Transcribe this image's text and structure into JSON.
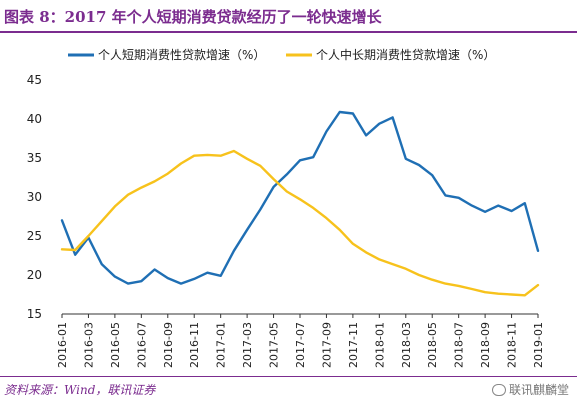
{
  "title": "图表 8：2017 年个人短期消费贷款经历了一轮快速增长",
  "source": "资料来源：Wind，联讯证券",
  "watermark": "联讯麒麟堂",
  "chart_data": {
    "type": "line",
    "title": "图表 8：2017 年个人短期消费贷款经历了一轮快速增长",
    "ylim": [
      15,
      45
    ],
    "yticks": [
      15,
      20,
      25,
      30,
      35,
      40,
      45
    ],
    "grid": false,
    "legend_position": "top",
    "x": [
      "2016-01",
      "2016-02",
      "2016-03",
      "2016-04",
      "2016-05",
      "2016-06",
      "2016-07",
      "2016-08",
      "2016-09",
      "2016-10",
      "2016-11",
      "2016-12",
      "2017-01",
      "2017-02",
      "2017-03",
      "2017-04",
      "2017-05",
      "2017-06",
      "2017-07",
      "2017-08",
      "2017-09",
      "2017-10",
      "2017-11",
      "2017-12",
      "2018-01",
      "2018-02",
      "2018-03",
      "2018-04",
      "2018-05",
      "2018-06",
      "2018-07",
      "2018-08",
      "2018-09",
      "2018-10",
      "2018-11",
      "2018-12",
      "2019-01"
    ],
    "xtick_labels": [
      "2016-01",
      "2016-03",
      "2016-05",
      "2016-07",
      "2016-09",
      "2016-11",
      "2017-01",
      "2017-03",
      "2017-05",
      "2017-07",
      "2017-09",
      "2017-11",
      "2018-01",
      "2018-03",
      "2018-05",
      "2018-07",
      "2018-09",
      "2018-11",
      "2019-01"
    ],
    "series": [
      {
        "name": "个人短期消费性贷款增速（%）",
        "color": "#1f6fb4",
        "values": [
          27.0,
          22.6,
          24.8,
          21.4,
          19.8,
          18.9,
          19.2,
          20.7,
          19.6,
          18.9,
          19.5,
          20.3,
          19.9,
          23.1,
          25.8,
          28.4,
          31.3,
          32.9,
          34.7,
          35.1,
          38.4,
          40.9,
          40.7,
          37.9,
          39.4,
          40.2,
          34.9,
          34.1,
          32.8,
          30.2,
          29.9,
          28.9,
          28.1,
          28.9,
          28.2,
          29.2,
          23.1
        ]
      },
      {
        "name": "个人中长期消费性贷款增速（%）",
        "color": "#f7c21c",
        "values": [
          23.3,
          23.2,
          25.0,
          26.9,
          28.8,
          30.3,
          31.2,
          32.0,
          33.0,
          34.3,
          35.3,
          35.4,
          35.3,
          35.9,
          34.9,
          34.0,
          32.3,
          30.7,
          29.7,
          28.6,
          27.3,
          25.8,
          24.0,
          22.9,
          22.0,
          21.4,
          20.8,
          20.0,
          19.4,
          18.9,
          18.6,
          18.2,
          17.8,
          17.6,
          17.5,
          17.4,
          18.7
        ]
      }
    ]
  }
}
